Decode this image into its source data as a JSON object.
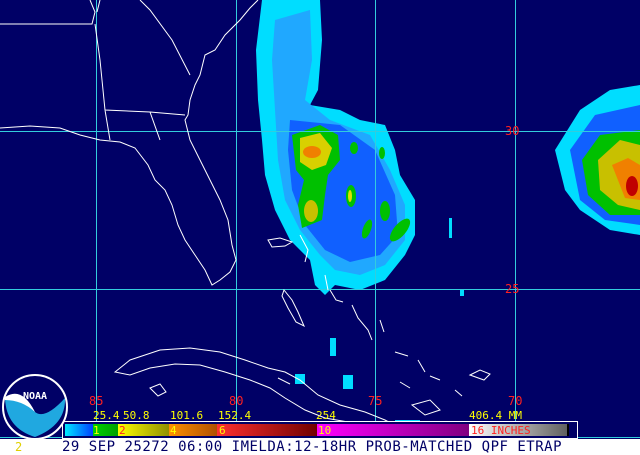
{
  "map": {
    "grid_color": "#33ccdd",
    "coast_color": "#ffffff",
    "background": "#000066",
    "latitude_labels": [
      "30",
      "25"
    ],
    "longitude_labels": [
      "85",
      "80",
      "75",
      "70"
    ]
  },
  "legend": {
    "mm_labels": [
      "25.4",
      "50.8",
      "101.6",
      "152.4",
      "254",
      "406.4 MM"
    ],
    "inch_labels": [
      "1",
      "2",
      "4",
      "6",
      "10",
      "16 INCHES"
    ],
    "colors": [
      "#00c0ff",
      "#00c000",
      "#e0e000",
      "#f08000",
      "#c00000",
      "#e000e0",
      "#c0c0c0"
    ]
  },
  "logo": {
    "text": "NOAA"
  },
  "footer": {
    "caption": "29 SEP 25272 06:00 IMELDA:12-18HR PROB-MATCHED QPF ETRAP",
    "corner_number": "2"
  }
}
